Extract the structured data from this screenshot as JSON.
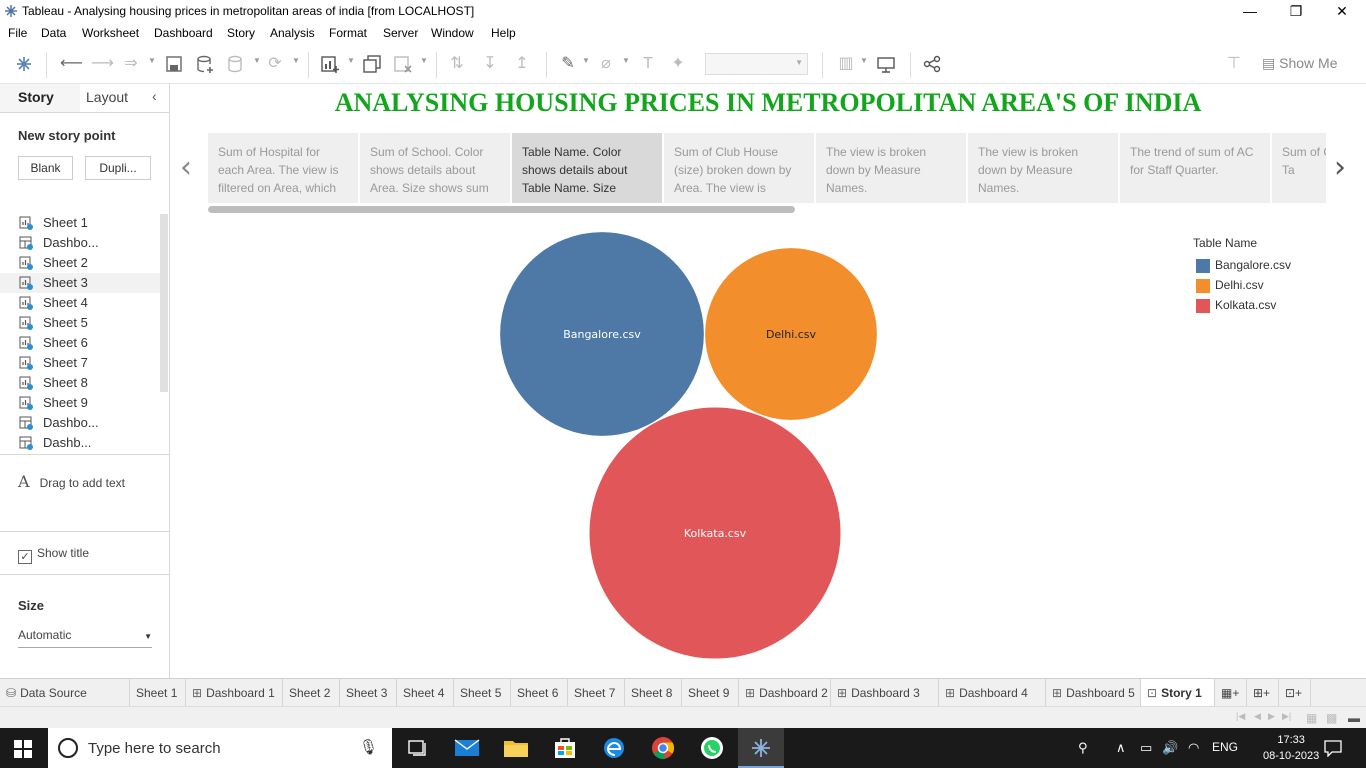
{
  "window": {
    "title": "Tableau - Analysing housing prices in metropolitan areas of india [from LOCALHOST]",
    "controls": {
      "minimize": "—",
      "restore": "❐",
      "close": "✕"
    }
  },
  "menu": [
    "File",
    "Data",
    "Worksheet",
    "Dashboard",
    "Story",
    "Analysis",
    "Format",
    "Server",
    "Window",
    "Help"
  ],
  "toolbar": {
    "show_me": "Show Me"
  },
  "left_pane": {
    "tabs": {
      "story": "Story",
      "layout": "Layout"
    },
    "new_story_point": "New story point",
    "blank_button": "Blank",
    "duplicate_button": "Dupli...",
    "sheets": [
      "Sheet 1",
      "Dashbo...",
      "Sheet 2",
      "Sheet 3",
      "Sheet 4",
      "Sheet 5",
      "Sheet 6",
      "Sheet 7",
      "Sheet 8",
      "Sheet 9",
      "Dashbo...",
      "Dashb..."
    ],
    "drag_text": "Drag to add text",
    "drag_icon": "A",
    "show_title": "Show title",
    "size_label": "Size",
    "size_value": "Automatic"
  },
  "story": {
    "title": "ANALYSING HOUSING PRICES IN METROPOLITAN AREA'S OF INDIA",
    "points": [
      "Sum of Hospital for each Area. The view is filtered on Area, which",
      "Sum of School.  Color shows details about Area.  Size shows sum",
      "Table Name.  Color shows details about Table Name.  Size",
      "Sum of Club House (size) broken down by Area. The view is",
      "The view is broken down by Measure Names.",
      "The view is broken down by Measure Names.",
      "The trend of sum of AC for Staff Quarter.",
      "Sum of Color sh about Ta"
    ],
    "active_point": 2
  },
  "legend": {
    "title": "Table Name",
    "items": [
      {
        "label": "Bangalore.csv",
        "color": "#4e79a7"
      },
      {
        "label": "Delhi.csv",
        "color": "#f28e2b"
      },
      {
        "label": "Kolkata.csv",
        "color": "#e15759"
      }
    ]
  },
  "chart_data": {
    "type": "packed-bubble",
    "title": "",
    "series": [
      {
        "name": "Bangalore.csv",
        "label": "Bangalore.csv",
        "color": "#4e79a7",
        "relative_size": 0.66
      },
      {
        "name": "Delhi.csv",
        "label": "Delhi.csv",
        "color": "#f28e2b",
        "relative_size": 0.47
      },
      {
        "name": "Kolkata.csv",
        "label": "Kolkata.csv",
        "color": "#e15759",
        "relative_size": 1.0
      }
    ]
  },
  "sheet_tabs": [
    "Data Source",
    "Sheet 1",
    "Dashboard 1",
    "Sheet 2",
    "Sheet 3",
    "Sheet 4",
    "Sheet 5",
    "Sheet 6",
    "Sheet 7",
    "Sheet 8",
    "Sheet 9",
    "Dashboard 2",
    "Dashboard 3",
    "Dashboard 4",
    "Dashboard 5",
    "Story 1"
  ],
  "taskbar": {
    "search_placeholder": "Type here to search",
    "language": "ENG",
    "time": "17:33",
    "date": "08-10-2023"
  }
}
